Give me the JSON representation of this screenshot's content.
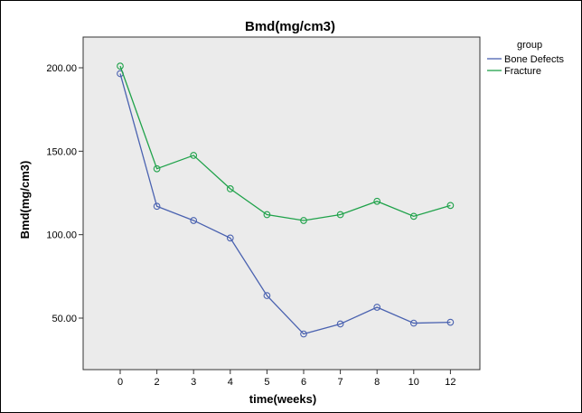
{
  "chart_data": {
    "type": "line",
    "title": "Bmd(mg/cm3)",
    "xlabel": "time(weeks)",
    "ylabel": "Bmd(mg/cm3)",
    "categories": [
      "0",
      "2",
      "3",
      "4",
      "5",
      "6",
      "7",
      "8",
      "10",
      "12"
    ],
    "y_ticks": [
      "50.00",
      "100.00",
      "150.00",
      "200.00"
    ],
    "y_tick_values": [
      50,
      100,
      150,
      200
    ],
    "ylim": [
      25,
      220
    ],
    "grid": false,
    "legend": {
      "title": "group",
      "position": "right"
    },
    "series": [
      {
        "name": "Bone Defects",
        "color": "#4a62b0",
        "values": [
          196.5,
          117,
          108.5,
          98,
          63.5,
          40.5,
          46.5,
          56.5,
          47,
          47.5
        ]
      },
      {
        "name": "Fracture",
        "color": "#1fa24a",
        "values": [
          201,
          139.5,
          147.5,
          127.5,
          112,
          108.5,
          112,
          120,
          111,
          117.5
        ]
      }
    ],
    "plot_background": "#ebebeb"
  }
}
